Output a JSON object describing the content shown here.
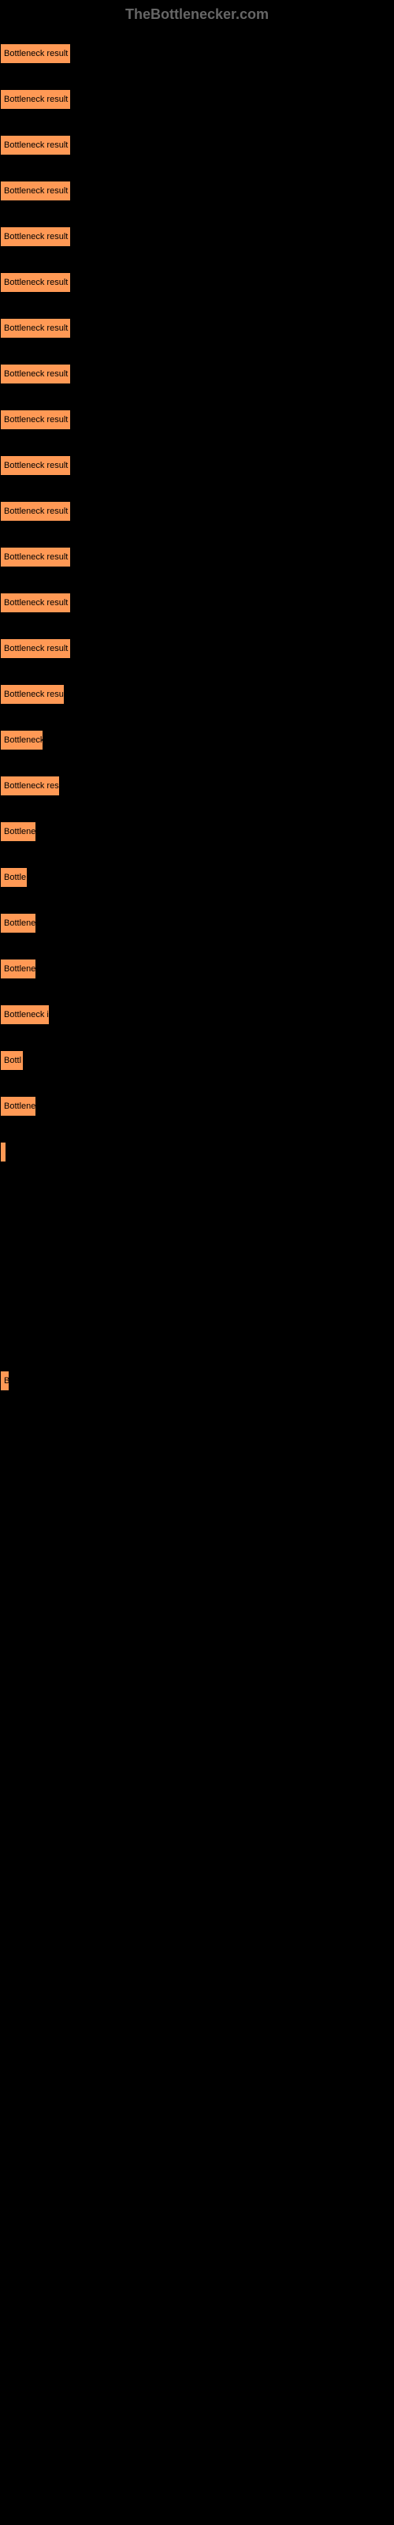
{
  "header": {
    "title": "TheBottlenecker.com"
  },
  "chart": {
    "type": "bar",
    "bar_color": "#ff9955",
    "background_color": "#000000",
    "text_color": "#000000",
    "header_color": "#666666",
    "bars": [
      {
        "label": "Bottleneck result",
        "width": 90
      },
      {
        "label": "Bottleneck result",
        "width": 90
      },
      {
        "label": "Bottleneck result",
        "width": 90
      },
      {
        "label": "Bottleneck result",
        "width": 90
      },
      {
        "label": "Bottleneck result",
        "width": 90
      },
      {
        "label": "Bottleneck result",
        "width": 90
      },
      {
        "label": "Bottleneck result",
        "width": 90
      },
      {
        "label": "Bottleneck result",
        "width": 90
      },
      {
        "label": "Bottleneck result",
        "width": 90
      },
      {
        "label": "Bottleneck result",
        "width": 90
      },
      {
        "label": "Bottleneck result",
        "width": 90
      },
      {
        "label": "Bottleneck result",
        "width": 90
      },
      {
        "label": "Bottleneck result",
        "width": 90
      },
      {
        "label": "Bottleneck result",
        "width": 90
      },
      {
        "label": "Bottleneck resu",
        "width": 82
      },
      {
        "label": "Bottleneck",
        "width": 55
      },
      {
        "label": "Bottleneck res",
        "width": 76
      },
      {
        "label": "Bottlene",
        "width": 46
      },
      {
        "label": "Bottle",
        "width": 35
      },
      {
        "label": "Bottlene",
        "width": 46
      },
      {
        "label": "Bottlene",
        "width": 46
      },
      {
        "label": "Bottleneck i",
        "width": 63
      },
      {
        "label": "Bottl",
        "width": 30
      },
      {
        "label": "Bottlene",
        "width": 46
      },
      {
        "label": "",
        "width": 8
      },
      {
        "label": "B",
        "width": 12
      }
    ],
    "spacer_after_index": 24,
    "spacer_rows": 4
  }
}
